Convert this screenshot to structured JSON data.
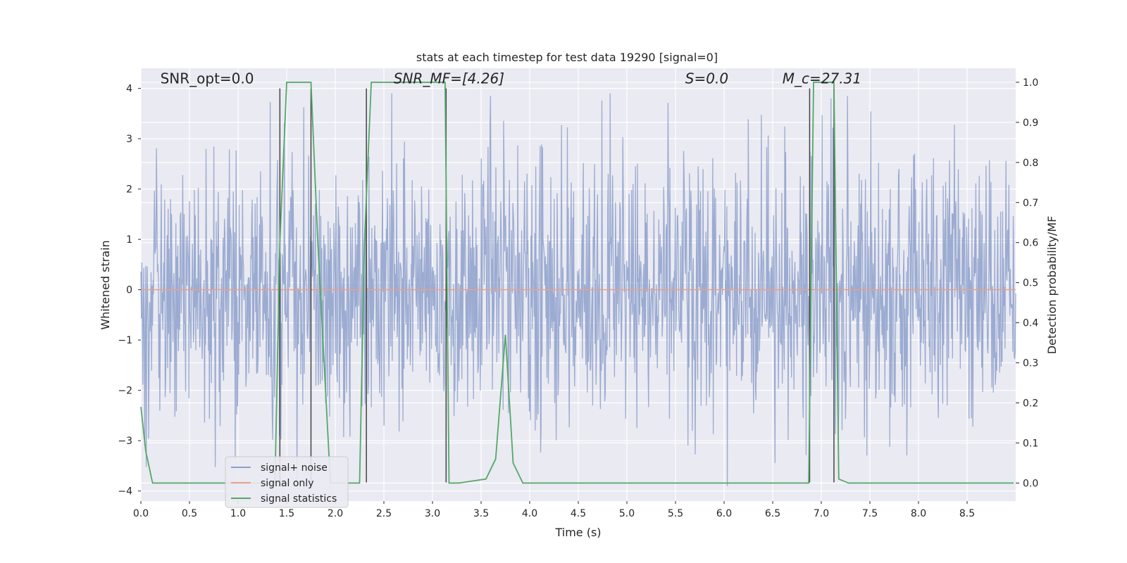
{
  "chart_data": {
    "type": "line",
    "title": "stats at each timestep for test data 19290 [signal=0]",
    "xlabel": "Time (s)",
    "ylabel": "Whitened strain",
    "y2label": "Detection probability/MF",
    "xlim": [
      0,
      9
    ],
    "ylim": [
      -4.2,
      4.4
    ],
    "y2lim": [
      -0.045,
      1.035
    ],
    "xticks": [
      0.0,
      0.5,
      1.0,
      1.5,
      2.0,
      2.5,
      3.0,
      3.5,
      4.0,
      4.5,
      5.0,
      5.5,
      6.0,
      6.5,
      7.0,
      7.5,
      8.0,
      8.5
    ],
    "xtick_labels": [
      "0.0",
      "0.5",
      "1.0",
      "1.5",
      "2.0",
      "2.5",
      "3.0",
      "3.5",
      "4.0",
      "4.5",
      "5.0",
      "5.5",
      "6.0",
      "6.5",
      "7.0",
      "7.5",
      "8.0",
      "8.5"
    ],
    "yticks": [
      -4,
      -3,
      -2,
      -1,
      0,
      1,
      2,
      3,
      4
    ],
    "ytick_labels": [
      "−4",
      "−3",
      "−2",
      "−1",
      "0",
      "1",
      "2",
      "3",
      "4"
    ],
    "y2ticks": [
      0.0,
      0.1,
      0.2,
      0.3,
      0.4,
      0.5,
      0.6,
      0.7,
      0.8,
      0.9,
      1.0
    ],
    "y2tick_labels": [
      "0.0",
      "0.1",
      "0.2",
      "0.3",
      "0.4",
      "0.5",
      "0.6",
      "0.7",
      "0.8",
      "0.9",
      "1.0"
    ],
    "grid": true,
    "legend_position": "lower-left",
    "annotations": [
      {
        "text": "SNR_opt=0.0",
        "x": 0.2,
        "y": 4.1,
        "italic": false
      },
      {
        "text": "SNR_MF=[4.26]",
        "x": 2.6,
        "y": 4.1,
        "italic": true
      },
      {
        "text": "S=0.0",
        "x": 5.6,
        "y": 4.1,
        "italic": true
      },
      {
        "text": "M_c=27.31",
        "x": 6.6,
        "y": 4.1,
        "italic": true
      }
    ],
    "vertical_lines_x": [
      1.43,
      1.75,
      2.32,
      3.14,
      6.88,
      7.13
    ],
    "series": [
      {
        "name": "signal+ noise",
        "axis": "left",
        "color": "#8da0cb",
        "kind": "noise",
        "sample_count": 1800,
        "amplitude_std": 1.0
      },
      {
        "name": "signal only",
        "axis": "left",
        "color": "#e8a08a",
        "x": [
          0,
          9
        ],
        "y": [
          0,
          0
        ]
      },
      {
        "name": "signal statistics",
        "axis": "right",
        "color": "#55a868",
        "x": [
          0.0,
          0.05,
          0.12,
          1.38,
          1.43,
          1.5,
          1.75,
          1.82,
          1.95,
          2.25,
          2.3,
          2.37,
          3.13,
          3.17,
          3.27,
          3.55,
          3.65,
          3.75,
          3.83,
          3.93,
          6.87,
          6.92,
          7.13,
          7.18,
          7.28,
          8.98
        ],
        "y": [
          0.19,
          0.08,
          0.0,
          0.0,
          0.6,
          1.0,
          1.0,
          0.6,
          0.0,
          0.0,
          0.6,
          1.0,
          1.0,
          0.0,
          0.0,
          0.01,
          0.06,
          0.37,
          0.05,
          0.0,
          0.0,
          1.0,
          1.0,
          0.01,
          0.0,
          0.0
        ]
      }
    ]
  },
  "colors": {
    "plot_bg": "#eaeaf2",
    "grid": "#ffffff",
    "noise": "#8da0cb",
    "signal": "#e8a08a",
    "stat": "#55a868",
    "vline": "#444444"
  }
}
